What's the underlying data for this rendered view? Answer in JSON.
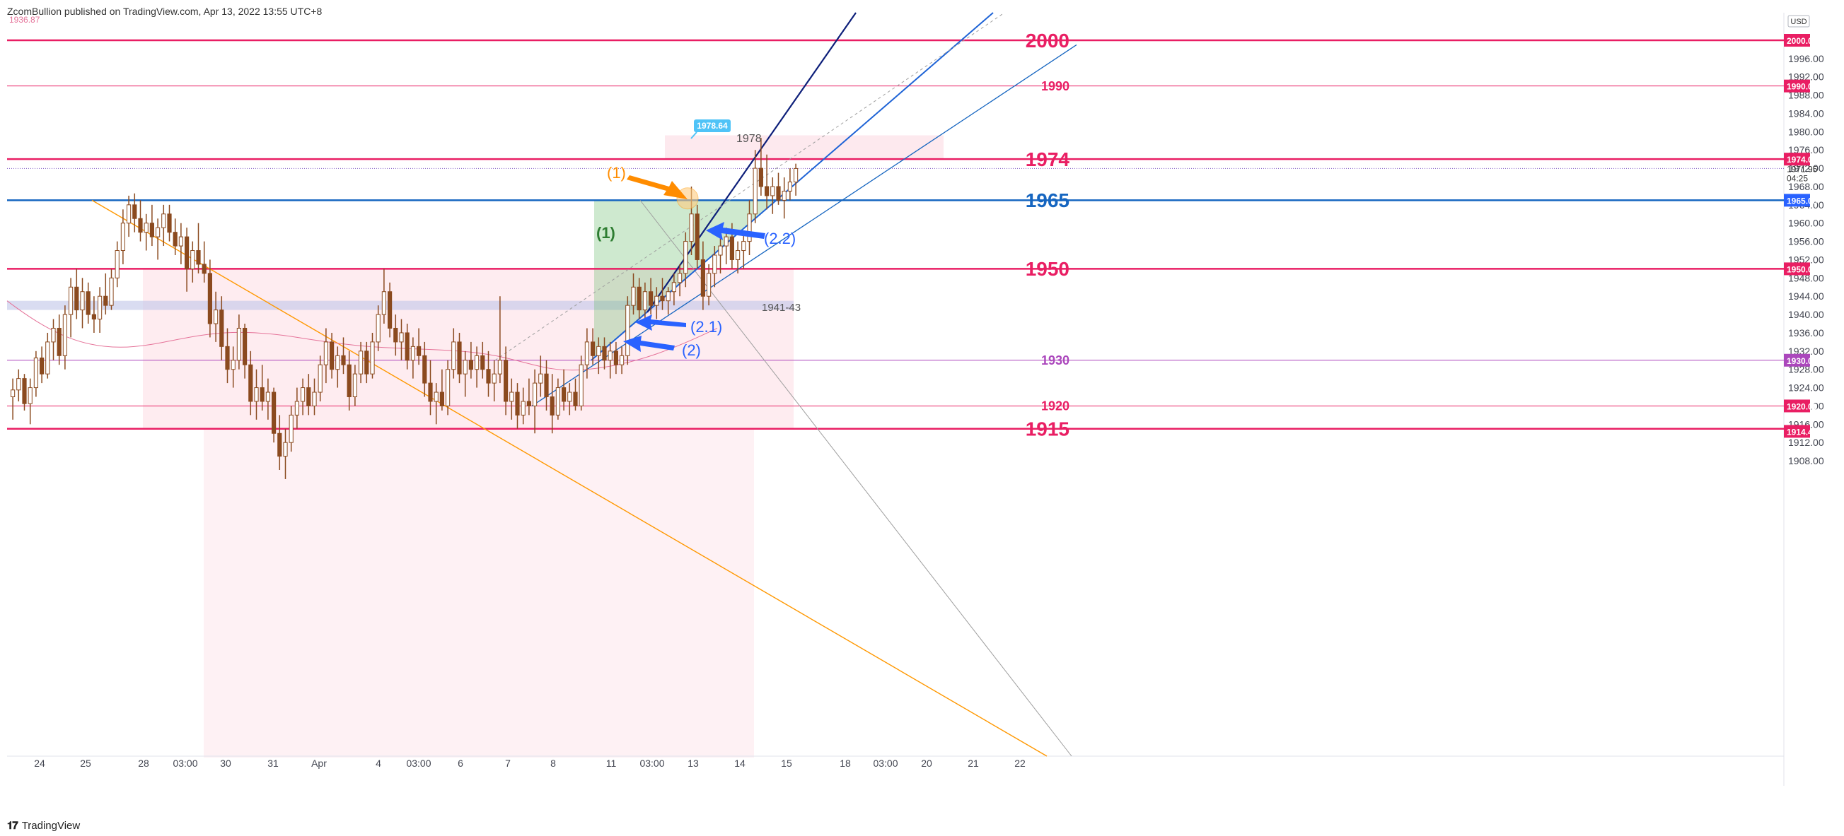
{
  "header": {
    "publisher": "ZcomBullion published on TradingView.com, Apr 13, 2022 13:55 UTC+8"
  },
  "footer": {
    "brand": "TradingView"
  },
  "currency_button": "USD",
  "colors": {
    "candle": "#8b4a1f",
    "level_red": "#e91e63",
    "level_blue": "#1565c0",
    "level_purple": "#ab47bc",
    "zone_pink": "#fde4ea",
    "zone_blue": "#c5cae9",
    "triangle_green": "#66bb6a",
    "arrow_orange": "#ff8c00",
    "arrow_blue": "#2962ff",
    "trend_orange": "#ff9800",
    "trend_grey": "#9e9e9e"
  },
  "chart_data": {
    "type": "candlestick",
    "title": "",
    "ylim": [
      1905,
      2003
    ],
    "y_ticks": [
      1908,
      1912,
      1916,
      1920,
      1924,
      1928,
      1932,
      1936,
      1940,
      1944,
      1948,
      1952,
      1956,
      1960,
      1964,
      1968,
      1972,
      1976,
      1980,
      1984,
      1988,
      1992,
      1996
    ],
    "top_left_value": "1936.87",
    "x_labels": [
      "24",
      "25",
      "28",
      "03:00",
      "30",
      "31",
      "Apr",
      "4",
      "03:00",
      "6",
      "7",
      "8",
      "11",
      "03:00",
      "13",
      "14",
      "15",
      "18",
      "03:00",
      "20",
      "21",
      "22"
    ],
    "price_labels": [
      {
        "value": 2000.0,
        "text": "2000.00",
        "color": "#e91e63"
      },
      {
        "value": 1990.0,
        "text": "1990.00",
        "color": "#e91e63"
      },
      {
        "value": 1974.0,
        "text": "1974.00",
        "color": "#e91e63"
      },
      {
        "value": 1971.95,
        "text": "1971.95",
        "sub": "04:25",
        "color": "none"
      },
      {
        "value": 1965.0,
        "text": "1965.00",
        "color": "#2962ff"
      },
      {
        "value": 1950.0,
        "text": "1950.00",
        "color": "#e91e63"
      },
      {
        "value": 1930.0,
        "text": "1930.00",
        "color": "#ab47bc"
      },
      {
        "value": 1920.0,
        "text": "1920.00",
        "color": "#e91e63"
      },
      {
        "value": 1914.44,
        "text": "1914.44",
        "color": "#e91e63"
      }
    ],
    "levels": [
      {
        "value": 2000,
        "label": "2000",
        "color": "#e91e63",
        "width": 2.5,
        "size": 28
      },
      {
        "value": 1990,
        "label": "1990",
        "color": "#e91e63",
        "width": 1,
        "size": 18
      },
      {
        "value": 1974,
        "label": "1974",
        "color": "#e91e63",
        "width": 2.5,
        "size": 28
      },
      {
        "value": 1965,
        "label": "1965",
        "color": "#1565c0",
        "width": 2.5,
        "size": 28
      },
      {
        "value": 1950,
        "label": "1950",
        "color": "#e91e63",
        "width": 2.5,
        "size": 28
      },
      {
        "value": 1930,
        "label": "1930",
        "color": "#ab47bc",
        "width": 1,
        "size": 18
      },
      {
        "value": 1920,
        "label": "1920",
        "color": "#e91e63",
        "width": 1,
        "size": 18
      },
      {
        "value": 1915,
        "label": "1915",
        "color": "#e91e63",
        "width": 2.5,
        "size": 28
      }
    ],
    "annotations": {
      "high_label": "1978.64",
      "zone_1978": "1978",
      "zone_1941": "1941-43",
      "orange_1": "(1)",
      "green_1": "(1)",
      "blue_22": "(2.2)",
      "blue_21": "(2.1)",
      "blue_2": "(2)"
    },
    "candles": [
      [
        1922.0,
        1926.0,
        1917.0,
        1923.5
      ],
      [
        1923.5,
        1928.0,
        1921.0,
        1926.0
      ],
      [
        1926.0,
        1927.0,
        1919.0,
        1920.5
      ],
      [
        1920.5,
        1926.0,
        1916.0,
        1924.0
      ],
      [
        1924.0,
        1932.0,
        1922.0,
        1930.5
      ],
      [
        1930.5,
        1933.0,
        1925.0,
        1927.0
      ],
      [
        1927.0,
        1936.0,
        1926.0,
        1934.0
      ],
      [
        1934.0,
        1939.0,
        1930.0,
        1937.0
      ],
      [
        1937.0,
        1940.0,
        1929.0,
        1931.0
      ],
      [
        1931.0,
        1942.0,
        1928.0,
        1940.0
      ],
      [
        1940.0,
        1948.0,
        1935.0,
        1946.0
      ],
      [
        1946.0,
        1950.0,
        1939.0,
        1941.0
      ],
      [
        1941.0,
        1948.0,
        1937.0,
        1945.0
      ],
      [
        1945.0,
        1947.0,
        1938.0,
        1940.0
      ],
      [
        1940.0,
        1944.0,
        1936.0,
        1939.0
      ],
      [
        1939.0,
        1946.0,
        1936.0,
        1944.0
      ],
      [
        1944.0,
        1949.0,
        1940.0,
        1942.0
      ],
      [
        1942.0,
        1950.0,
        1941.0,
        1948.0
      ],
      [
        1948.0,
        1956.0,
        1946.0,
        1954.0
      ],
      [
        1954.0,
        1963.0,
        1951.0,
        1960.0
      ],
      [
        1960.0,
        1966.0,
        1957.0,
        1964.0
      ],
      [
        1964.0,
        1966.5,
        1958.0,
        1961.0
      ],
      [
        1961.0,
        1965.0,
        1956.0,
        1958.0
      ],
      [
        1958.0,
        1962.0,
        1954.0,
        1960.0
      ],
      [
        1960.0,
        1964.0,
        1955.0,
        1957.0
      ],
      [
        1957.0,
        1961.0,
        1952.0,
        1959.0
      ],
      [
        1959.0,
        1964.0,
        1955.0,
        1962.0
      ],
      [
        1962.0,
        1964.0,
        1956.0,
        1958.0
      ],
      [
        1958.0,
        1961.0,
        1953.0,
        1955.0
      ],
      [
        1955.0,
        1960.0,
        1951.0,
        1957.0
      ],
      [
        1957.0,
        1959.0,
        1945.0,
        1950.0
      ],
      [
        1950.0,
        1956.0,
        1947.0,
        1954.0
      ],
      [
        1954.0,
        1960.0,
        1949.0,
        1951.0
      ],
      [
        1951.0,
        1956.0,
        1947.0,
        1949.0
      ],
      [
        1949.0,
        1952.0,
        1935.0,
        1938.0
      ],
      [
        1938.0,
        1945.0,
        1934.0,
        1941.0
      ],
      [
        1941.0,
        1944.0,
        1930.0,
        1933.0
      ],
      [
        1933.0,
        1937.0,
        1925.0,
        1928.0
      ],
      [
        1928.0,
        1933.0,
        1924.0,
        1930.0
      ],
      [
        1930.0,
        1940.0,
        1928.0,
        1937.0
      ],
      [
        1937.0,
        1938.0,
        1926.0,
        1929.0
      ],
      [
        1929.0,
        1932.0,
        1918.0,
        1921.0
      ],
      [
        1921.0,
        1928.0,
        1917.0,
        1924.0
      ],
      [
        1924.0,
        1929.0,
        1919.0,
        1921.0
      ],
      [
        1921.0,
        1926.0,
        1917.0,
        1923.0
      ],
      [
        1923.0,
        1924.0,
        1912.0,
        1914.0
      ],
      [
        1914.0,
        1918.0,
        1906.0,
        1909.0
      ],
      [
        1909.0,
        1915.0,
        1904.0,
        1912.0
      ],
      [
        1912.0,
        1920.0,
        1910.0,
        1918.0
      ],
      [
        1918.0,
        1924.0,
        1915.0,
        1921.0
      ],
      [
        1921.0,
        1926.0,
        1918.0,
        1924.0
      ],
      [
        1924.0,
        1927.0,
        1918.0,
        1920.0
      ],
      [
        1920.0,
        1926.0,
        1918.0,
        1923.0
      ],
      [
        1923.0,
        1931.0,
        1921.0,
        1929.0
      ],
      [
        1929.0,
        1937.0,
        1925.0,
        1934.0
      ],
      [
        1934.0,
        1936.0,
        1926.0,
        1928.0
      ],
      [
        1928.0,
        1933.0,
        1924.0,
        1931.0
      ],
      [
        1931.0,
        1935.0,
        1927.0,
        1929.0
      ],
      [
        1929.0,
        1932.0,
        1919.0,
        1922.0
      ],
      [
        1922.0,
        1929.0,
        1920.0,
        1927.0
      ],
      [
        1927.0,
        1934.0,
        1925.0,
        1932.0
      ],
      [
        1932.0,
        1934.0,
        1925.0,
        1927.0
      ],
      [
        1927.0,
        1936.0,
        1926.0,
        1934.0
      ],
      [
        1934.0,
        1942.0,
        1932.0,
        1940.0
      ],
      [
        1940.0,
        1950.0,
        1938.0,
        1945.0
      ],
      [
        1945.0,
        1947.0,
        1935.0,
        1937.0
      ],
      [
        1937.0,
        1940.0,
        1931.0,
        1934.0
      ],
      [
        1934.0,
        1939.0,
        1930.0,
        1936.0
      ],
      [
        1936.0,
        1938.0,
        1928.0,
        1930.0
      ],
      [
        1930.0,
        1935.0,
        1926.0,
        1933.0
      ],
      [
        1933.0,
        1937.0,
        1929.0,
        1931.0
      ],
      [
        1931.0,
        1934.0,
        1922.0,
        1925.0
      ],
      [
        1925.0,
        1930.0,
        1918.0,
        1921.0
      ],
      [
        1921.0,
        1925.0,
        1916.0,
        1923.0
      ],
      [
        1923.0,
        1928.0,
        1919.0,
        1920.0
      ],
      [
        1920.0,
        1930.0,
        1918.0,
        1928.0
      ],
      [
        1928.0,
        1937.0,
        1926.0,
        1934.0
      ],
      [
        1934.0,
        1936.0,
        1925.0,
        1927.0
      ],
      [
        1927.0,
        1932.0,
        1922.0,
        1930.0
      ],
      [
        1930.0,
        1934.0,
        1926.0,
        1928.0
      ],
      [
        1928.0,
        1933.0,
        1924.0,
        1931.0
      ],
      [
        1931.0,
        1934.0,
        1926.0,
        1928.0
      ],
      [
        1928.0,
        1932.0,
        1922.0,
        1925.0
      ],
      [
        1925.0,
        1930.0,
        1921.0,
        1927.0
      ],
      [
        1927.0,
        1944.0,
        1925.0,
        1930.0
      ],
      [
        1930.0,
        1933.0,
        1918.0,
        1921.0
      ],
      [
        1921.0,
        1926.0,
        1917.0,
        1923.0
      ],
      [
        1923.0,
        1925.0,
        1915.0,
        1918.0
      ],
      [
        1918.0,
        1924.0,
        1916.0,
        1921.0
      ],
      [
        1921.0,
        1926.0,
        1918.0,
        1920.0
      ],
      [
        1920.0,
        1928.0,
        1914.0,
        1925.0
      ],
      [
        1925.0,
        1931.0,
        1922.0,
        1927.0
      ],
      [
        1927.0,
        1930.0,
        1919.0,
        1922.0
      ],
      [
        1922.0,
        1927.0,
        1914.0,
        1918.0
      ],
      [
        1918.0,
        1926.0,
        1917.0,
        1924.0
      ],
      [
        1924.0,
        1928.0,
        1919.0,
        1921.0
      ],
      [
        1921.0,
        1925.0,
        1918.0,
        1923.0
      ],
      [
        1923.0,
        1926.0,
        1919.0,
        1920.0
      ],
      [
        1920.0,
        1931.0,
        1919.0,
        1929.0
      ],
      [
        1929.0,
        1937.0,
        1926.0,
        1934.0
      ],
      [
        1934.0,
        1937.0,
        1929.0,
        1931.0
      ],
      [
        1931.0,
        1935.0,
        1927.0,
        1933.0
      ],
      [
        1933.0,
        1935.0,
        1928.0,
        1930.0
      ],
      [
        1930.0,
        1934.0,
        1926.0,
        1932.0
      ],
      [
        1932.0,
        1934.0,
        1927.0,
        1929.0
      ],
      [
        1929.0,
        1933.0,
        1927.0,
        1931.0
      ],
      [
        1931.0,
        1944.0,
        1929.0,
        1942.0
      ],
      [
        1942.0,
        1949.0,
        1940.0,
        1946.0
      ],
      [
        1946.0,
        1948.0,
        1939.0,
        1941.0
      ],
      [
        1941.0,
        1947.0,
        1938.0,
        1945.0
      ],
      [
        1945.0,
        1948.0,
        1940.0,
        1942.0
      ],
      [
        1942.0,
        1946.0,
        1939.0,
        1944.0
      ],
      [
        1944.0,
        1948.0,
        1941.0,
        1943.0
      ],
      [
        1943.0,
        1946.0,
        1940.0,
        1945.0
      ],
      [
        1945.0,
        1949.0,
        1942.0,
        1947.0
      ],
      [
        1947.0,
        1951.0,
        1944.0,
        1949.0
      ],
      [
        1949.0,
        1958.0,
        1946.0,
        1956.0
      ],
      [
        1956.0,
        1968.0,
        1953.0,
        1962.0
      ],
      [
        1962.0,
        1964.0,
        1950.0,
        1952.0
      ],
      [
        1952.0,
        1956.0,
        1941.0,
        1944.0
      ],
      [
        1944.0,
        1951.0,
        1942.0,
        1949.0
      ],
      [
        1949.0,
        1955.0,
        1946.0,
        1953.0
      ],
      [
        1953.0,
        1957.0,
        1949.0,
        1955.0
      ],
      [
        1955.0,
        1959.0,
        1951.0,
        1957.0
      ],
      [
        1957.0,
        1960.0,
        1950.0,
        1952.0
      ],
      [
        1952.0,
        1956.0,
        1949.0,
        1954.0
      ],
      [
        1954.0,
        1958.0,
        1950.0,
        1956.0
      ],
      [
        1956.0,
        1965.0,
        1953.0,
        1962.0
      ],
      [
        1962.0,
        1976.0,
        1960.0,
        1972.0
      ],
      [
        1972.0,
        1978.64,
        1966.0,
        1968.0
      ],
      [
        1968.0,
        1975.0,
        1963.0,
        1966.0
      ],
      [
        1966.0,
        1970.0,
        1962.0,
        1968.0
      ],
      [
        1968.0,
        1971.0,
        1964.0,
        1965.0
      ],
      [
        1965.0,
        1970.0,
        1961.0,
        1967.0
      ],
      [
        1967.0,
        1972.0,
        1965.0,
        1969.0
      ],
      [
        1969.0,
        1973.0,
        1966.0,
        1971.95
      ]
    ]
  }
}
